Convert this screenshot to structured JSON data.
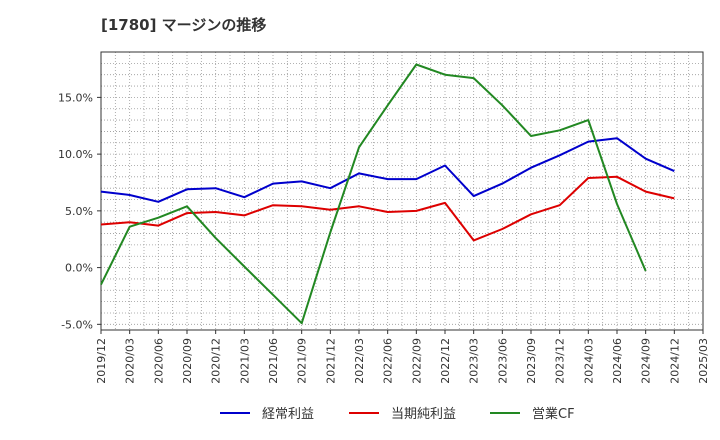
{
  "chart_data": {
    "type": "line",
    "title": "[1780]  マージンの推移",
    "x": [
      "2019/12",
      "2020/03",
      "2020/06",
      "2020/09",
      "2020/12",
      "2021/03",
      "2021/06",
      "2021/09",
      "2021/12",
      "2022/03",
      "2022/06",
      "2022/09",
      "2022/12",
      "2023/03",
      "2023/06",
      "2023/09",
      "2023/12",
      "2024/03",
      "2024/06",
      "2024/09",
      "2024/12",
      "2025/03"
    ],
    "yticks": [
      -5.0,
      0.0,
      5.0,
      10.0,
      15.0
    ],
    "ytick_labels": [
      "-5.0%",
      "0.0%",
      "5.0%",
      "10.0%",
      "15.0%"
    ],
    "ylim": [
      -5.5,
      19.0
    ],
    "grid": true,
    "legend_position": "bottom",
    "series": [
      {
        "name": "経常利益",
        "color": "#0000cc",
        "values": [
          6.7,
          6.4,
          5.8,
          6.9,
          7.0,
          6.2,
          7.4,
          7.6,
          7.0,
          8.3,
          7.8,
          7.8,
          9.0,
          6.3,
          7.4,
          8.8,
          9.9,
          11.1,
          11.4,
          9.6,
          8.5,
          null
        ]
      },
      {
        "name": "当期純利益",
        "color": "#dd0000",
        "values": [
          3.8,
          4.0,
          3.7,
          4.8,
          4.9,
          4.6,
          5.5,
          5.4,
          5.1,
          5.4,
          4.9,
          5.0,
          5.7,
          2.4,
          3.4,
          4.7,
          5.5,
          7.9,
          8.0,
          6.7,
          6.1,
          null
        ]
      },
      {
        "name": "営業CF",
        "color": "#228822",
        "values": [
          -1.5,
          3.6,
          4.4,
          5.4,
          2.6,
          0.1,
          -2.4,
          -4.9,
          3.1,
          10.6,
          14.3,
          17.9,
          17.0,
          16.7,
          14.3,
          11.6,
          12.1,
          13.0,
          5.6,
          -0.3,
          null,
          null
        ]
      }
    ]
  }
}
